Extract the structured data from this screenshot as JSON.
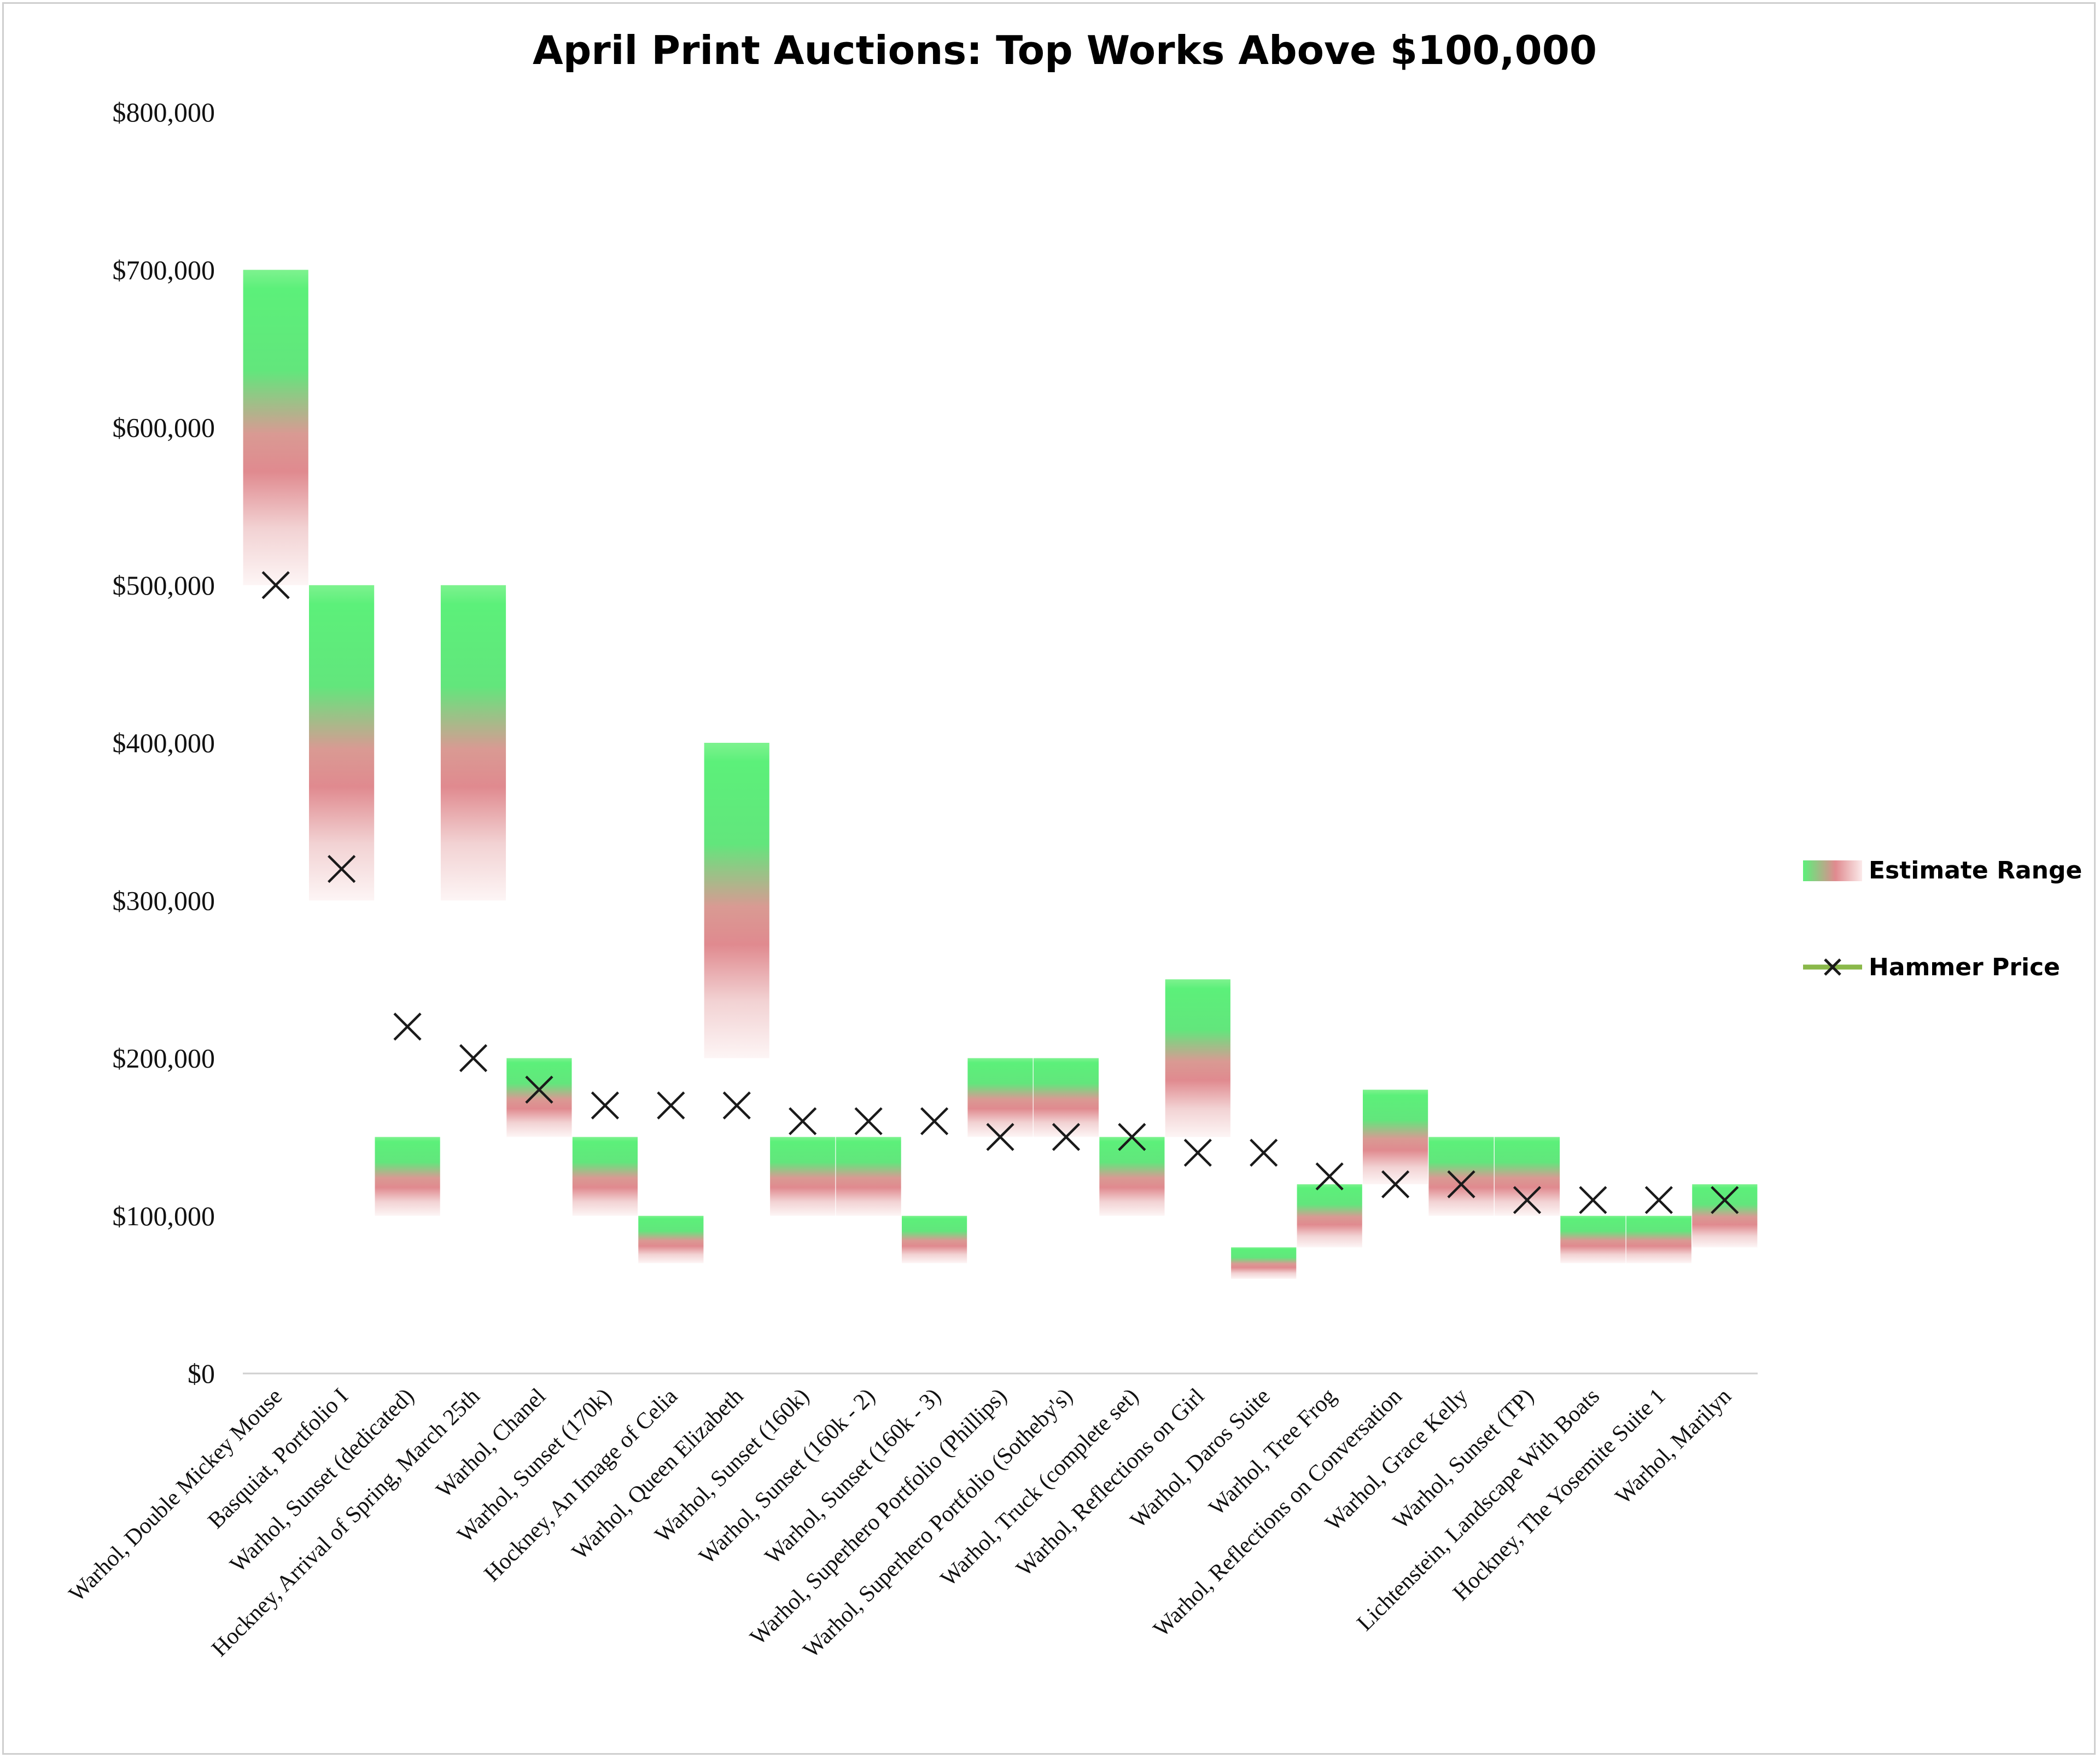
{
  "chart_data": {
    "type": "bar",
    "title": "April Print Auctions: Top Works Above $100,000",
    "xlabel": "",
    "ylabel": "",
    "ylim": [
      0,
      800000
    ],
    "yticks": [
      0,
      100000,
      200000,
      300000,
      400000,
      500000,
      600000,
      700000,
      800000
    ],
    "ytick_labels": [
      "$0",
      "$100,000",
      "$200,000",
      "$300,000",
      "$400,000",
      "$500,000",
      "$600,000",
      "$700,000",
      "$800,000"
    ],
    "grid": false,
    "legend_position": "right",
    "categories": [
      "Warhol, Double Mickey Mouse",
      "Basquiat, Portfolio I",
      "Warhol, Sunset (dedicated)",
      "Hockney, Arrival of Spring, March 25th",
      "Warhol, Chanel",
      "Warhol, Sunset (170k)",
      "Hockney, An Image of Celia",
      "Warhol, Queen Elizabeth",
      "Warhol, Sunset (160k)",
      "Warhol, Sunset (160k - 2)",
      "Warhol, Sunset (160k - 3)",
      "Warhol, Superhero Portfolio (Phillips)",
      "Warhol, Superhero Portfolio (Sotheby's)",
      "Warhol, Truck (complete set)",
      "Warhol, Reflections on Girl",
      "Warhol, Daros Suite",
      "Warhol, Tree Frog",
      "Warhol, Reflections on Conversation",
      "Warhol, Grace Kelly",
      "Warhol, Sunset (TP)",
      "Lichtenstein, Landscape With Boats",
      "Hockney, The Yosemite Suite 1",
      "Warhol, Marilyn"
    ],
    "series": [
      {
        "name": "Estimate Range",
        "kind": "floating-bar",
        "low": [
          500000,
          300000,
          100000,
          300000,
          150000,
          100000,
          70000,
          200000,
          100000,
          100000,
          70000,
          150000,
          150000,
          100000,
          150000,
          60000,
          80000,
          120000,
          100000,
          100000,
          70000,
          70000,
          80000
        ],
        "high": [
          700000,
          500000,
          150000,
          500000,
          200000,
          150000,
          100000,
          400000,
          150000,
          150000,
          100000,
          200000,
          200000,
          150000,
          250000,
          80000,
          120000,
          180000,
          150000,
          150000,
          100000,
          100000,
          120000
        ]
      },
      {
        "name": "Hammer Price",
        "kind": "marker",
        "values": [
          500000,
          320000,
          220000,
          200000,
          180000,
          170000,
          170000,
          170000,
          160000,
          160000,
          160000,
          150000,
          150000,
          150000,
          140000,
          140000,
          125000,
          120000,
          120000,
          110000,
          110000,
          110000,
          110000
        ]
      }
    ],
    "colors": {
      "bar_top": "#5cf07a",
      "bar_mid": "#de8a8e",
      "bar_bottom": "#fdf3f3",
      "marker": "#1a1a1a",
      "legend_line": "#8ab84a",
      "axis": "#cfcfcf"
    }
  }
}
